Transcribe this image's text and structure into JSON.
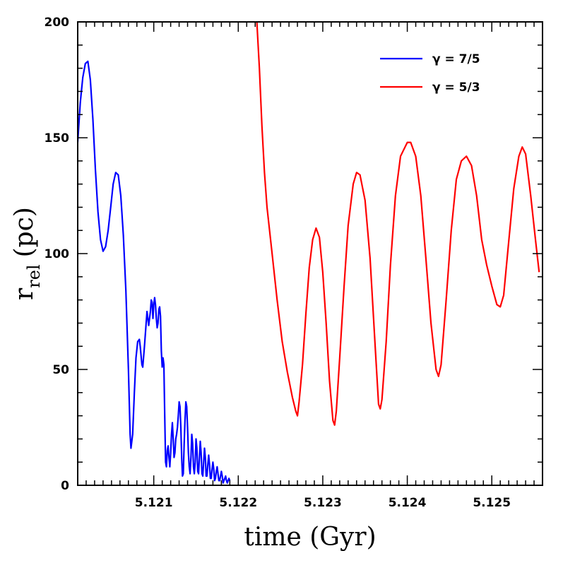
{
  "chart_data": {
    "type": "line",
    "xlabel": "time (Gyr)",
    "ylabel": {
      "main": "r",
      "subscript": "rel",
      "unit": "(pc)"
    },
    "xlim": [
      5.1201,
      5.1256
    ],
    "ylim": [
      0,
      200
    ],
    "x_major_ticks": [
      5.121,
      5.122,
      5.123,
      5.124,
      5.125
    ],
    "x_tick_labels": [
      "5.121",
      "5.122",
      "5.123",
      "5.124",
      "5.125"
    ],
    "y_major_ticks": [
      0,
      50,
      100,
      150,
      200
    ],
    "y_tick_labels": [
      "0",
      "50",
      "100",
      "150",
      "200"
    ],
    "grid": false,
    "legend_position": "top-right",
    "series": [
      {
        "name": "γ = 7/5",
        "color": "#0000ff",
        "points": [
          [
            5.1201,
            148
          ],
          [
            5.12013,
            165
          ],
          [
            5.12016,
            176
          ],
          [
            5.12019,
            182
          ],
          [
            5.12022,
            183
          ],
          [
            5.12025,
            175
          ],
          [
            5.12028,
            158
          ],
          [
            5.12031,
            136
          ],
          [
            5.12034,
            118
          ],
          [
            5.12037,
            106
          ],
          [
            5.1204,
            101
          ],
          [
            5.12043,
            103
          ],
          [
            5.12046,
            110
          ],
          [
            5.12049,
            120
          ],
          [
            5.12052,
            130
          ],
          [
            5.12055,
            135
          ],
          [
            5.12058,
            134
          ],
          [
            5.12061,
            125
          ],
          [
            5.12064,
            108
          ],
          [
            5.12067,
            84
          ],
          [
            5.1207,
            50
          ],
          [
            5.12072,
            22
          ],
          [
            5.12073,
            16
          ],
          [
            5.12075,
            22
          ],
          [
            5.12077,
            40
          ],
          [
            5.12079,
            55
          ],
          [
            5.12081,
            62
          ],
          [
            5.12083,
            63
          ],
          [
            5.12084,
            60
          ],
          [
            5.12086,
            52
          ],
          [
            5.12087,
            51
          ],
          [
            5.12089,
            60
          ],
          [
            5.12091,
            70
          ],
          [
            5.12092,
            75
          ],
          [
            5.12094,
            69
          ],
          [
            5.12096,
            75
          ],
          [
            5.12097,
            80
          ],
          [
            5.12098,
            79
          ],
          [
            5.12099,
            72
          ],
          [
            5.121,
            78
          ],
          [
            5.12101,
            81
          ],
          [
            5.12102,
            78
          ],
          [
            5.12103,
            72
          ],
          [
            5.12104,
            68
          ],
          [
            5.12105,
            70
          ],
          [
            5.12106,
            76
          ],
          [
            5.12107,
            77
          ],
          [
            5.12108,
            73
          ],
          [
            5.12109,
            58
          ],
          [
            5.1211,
            51
          ],
          [
            5.12111,
            55
          ],
          [
            5.12112,
            52
          ],
          [
            5.12113,
            30
          ],
          [
            5.12114,
            10
          ],
          [
            5.12115,
            8
          ],
          [
            5.12116,
            15
          ],
          [
            5.12117,
            17
          ],
          [
            5.12118,
            12
          ],
          [
            5.12119,
            8
          ],
          [
            5.1212,
            14
          ],
          [
            5.12121,
            22
          ],
          [
            5.12122,
            27
          ],
          [
            5.12123,
            20
          ],
          [
            5.12124,
            12
          ],
          [
            5.12125,
            14
          ],
          [
            5.12126,
            20
          ],
          [
            5.12127,
            22
          ],
          [
            5.12128,
            25
          ],
          [
            5.12129,
            30
          ],
          [
            5.1213,
            36
          ],
          [
            5.12131,
            34
          ],
          [
            5.12132,
            25
          ],
          [
            5.12133,
            12
          ],
          [
            5.12134,
            4
          ],
          [
            5.12135,
            5
          ],
          [
            5.12136,
            18
          ],
          [
            5.12137,
            28
          ],
          [
            5.12138,
            36
          ],
          [
            5.12139,
            34
          ],
          [
            5.1214,
            25
          ],
          [
            5.12141,
            14
          ],
          [
            5.12142,
            8
          ],
          [
            5.12143,
            5
          ],
          [
            5.12144,
            12
          ],
          [
            5.12145,
            22
          ],
          [
            5.12146,
            18
          ],
          [
            5.12147,
            8
          ],
          [
            5.12148,
            5
          ],
          [
            5.12149,
            10
          ],
          [
            5.1215,
            20
          ],
          [
            5.12151,
            16
          ],
          [
            5.12152,
            6
          ],
          [
            5.12153,
            5
          ],
          [
            5.12154,
            12
          ],
          [
            5.12155,
            19
          ],
          [
            5.12156,
            14
          ],
          [
            5.12157,
            5
          ],
          [
            5.12158,
            4
          ],
          [
            5.12159,
            10
          ],
          [
            5.1216,
            16
          ],
          [
            5.12161,
            12
          ],
          [
            5.12162,
            4
          ],
          [
            5.12163,
            4
          ],
          [
            5.12164,
            9
          ],
          [
            5.12165,
            13
          ],
          [
            5.12166,
            9
          ],
          [
            5.12167,
            3
          ],
          [
            5.12168,
            3
          ],
          [
            5.12169,
            7
          ],
          [
            5.1217,
            10
          ],
          [
            5.12171,
            7
          ],
          [
            5.12172,
            2
          ],
          [
            5.12173,
            3
          ],
          [
            5.12174,
            6
          ],
          [
            5.12175,
            8
          ],
          [
            5.12176,
            5
          ],
          [
            5.12177,
            2
          ],
          [
            5.12178,
            2
          ],
          [
            5.12179,
            4
          ],
          [
            5.1218,
            6
          ],
          [
            5.12181,
            4
          ],
          [
            5.12182,
            1
          ],
          [
            5.12183,
            2
          ],
          [
            5.12184,
            3
          ],
          [
            5.12185,
            4
          ],
          [
            5.12186,
            2
          ],
          [
            5.12187,
            1
          ],
          [
            5.12188,
            2
          ],
          [
            5.12189,
            3
          ],
          [
            5.1219,
            2
          ]
        ]
      },
      {
        "name": "γ = 5/3",
        "color": "#ff0000",
        "points": [
          [
            5.12222,
            200
          ],
          [
            5.12225,
            180
          ],
          [
            5.12228,
            155
          ],
          [
            5.12231,
            135
          ],
          [
            5.12234,
            120
          ],
          [
            5.1224,
            100
          ],
          [
            5.12246,
            80
          ],
          [
            5.12252,
            62
          ],
          [
            5.12258,
            49
          ],
          [
            5.12264,
            38
          ],
          [
            5.12268,
            32
          ],
          [
            5.1227,
            30
          ],
          [
            5.12272,
            36
          ],
          [
            5.12276,
            52
          ],
          [
            5.1228,
            74
          ],
          [
            5.12284,
            94
          ],
          [
            5.12288,
            106
          ],
          [
            5.12292,
            111
          ],
          [
            5.12296,
            107
          ],
          [
            5.123,
            92
          ],
          [
            5.12304,
            70
          ],
          [
            5.12308,
            45
          ],
          [
            5.12312,
            28
          ],
          [
            5.12314,
            26
          ],
          [
            5.12316,
            32
          ],
          [
            5.1232,
            55
          ],
          [
            5.12325,
            85
          ],
          [
            5.1233,
            112
          ],
          [
            5.12336,
            130
          ],
          [
            5.1234,
            135
          ],
          [
            5.12344,
            134
          ],
          [
            5.1235,
            123
          ],
          [
            5.12356,
            98
          ],
          [
            5.12362,
            60
          ],
          [
            5.12366,
            35
          ],
          [
            5.12368,
            33
          ],
          [
            5.1237,
            37
          ],
          [
            5.12375,
            62
          ],
          [
            5.1238,
            95
          ],
          [
            5.12386,
            125
          ],
          [
            5.12392,
            142
          ],
          [
            5.124,
            148
          ],
          [
            5.12404,
            148
          ],
          [
            5.1241,
            142
          ],
          [
            5.12416,
            125
          ],
          [
            5.12422,
            98
          ],
          [
            5.12428,
            70
          ],
          [
            5.12434,
            50
          ],
          [
            5.12437,
            47
          ],
          [
            5.1244,
            52
          ],
          [
            5.12446,
            80
          ],
          [
            5.12452,
            110
          ],
          [
            5.12458,
            132
          ],
          [
            5.12464,
            140
          ],
          [
            5.1247,
            142
          ],
          [
            5.12476,
            138
          ],
          [
            5.12482,
            125
          ],
          [
            5.12488,
            106
          ],
          [
            5.12494,
            95
          ],
          [
            5.125,
            86
          ],
          [
            5.12506,
            78
          ],
          [
            5.1251,
            77
          ],
          [
            5.12514,
            82
          ],
          [
            5.1252,
            105
          ],
          [
            5.12526,
            128
          ],
          [
            5.12532,
            142
          ],
          [
            5.12536,
            146
          ],
          [
            5.1254,
            143
          ],
          [
            5.12546,
            125
          ],
          [
            5.12552,
            105
          ],
          [
            5.12556,
            92
          ]
        ]
      }
    ]
  }
}
